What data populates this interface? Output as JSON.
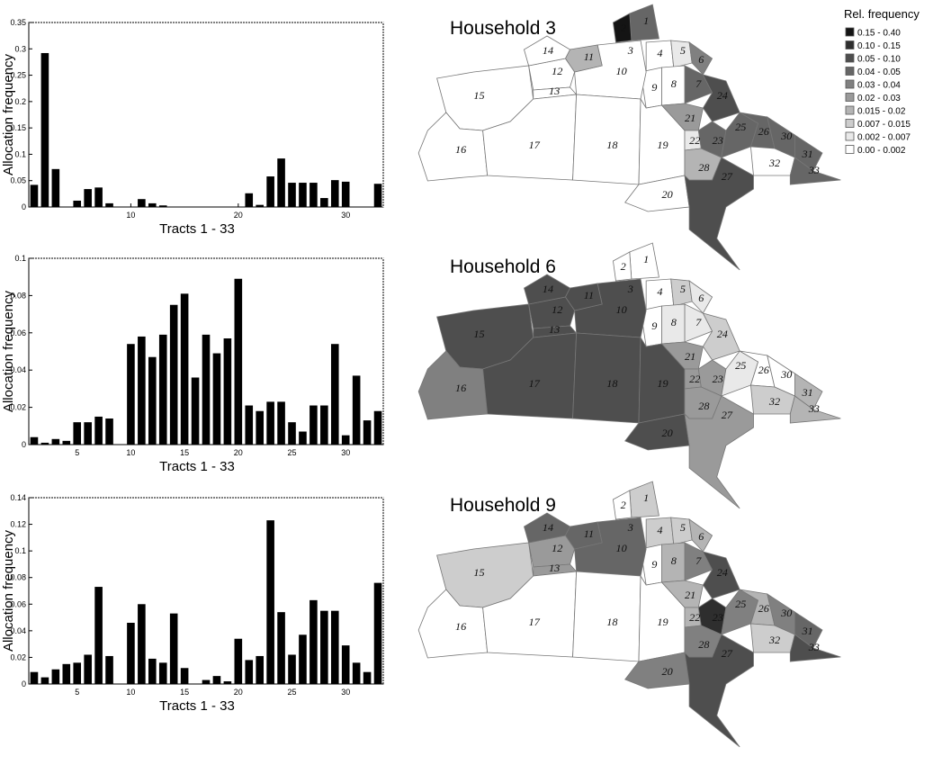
{
  "chart_data": [
    {
      "type": "bar",
      "xlabel": "Tracts 1 - 33",
      "ylabel": "Allocation frequency",
      "ylim": [
        0,
        0.35
      ],
      "yticks": [
        "0",
        "0.05",
        "0.1",
        "0.15",
        "0.2",
        "0.25",
        "0.3",
        "0.35"
      ],
      "xticks": [
        "10",
        "20",
        "30"
      ],
      "x": [
        1,
        2,
        3,
        4,
        5,
        6,
        7,
        8,
        9,
        10,
        11,
        12,
        13,
        14,
        15,
        16,
        17,
        18,
        19,
        20,
        21,
        22,
        23,
        24,
        25,
        26,
        27,
        28,
        29,
        30,
        31,
        32,
        33
      ],
      "values": [
        0.042,
        0.292,
        0.072,
        0.0,
        0.012,
        0.034,
        0.037,
        0.007,
        0.0,
        0.0,
        0.015,
        0.007,
        0.003,
        0.0,
        0.0,
        0.0,
        0.0,
        0.0,
        0.0,
        0.0,
        0.026,
        0.004,
        0.058,
        0.092,
        0.046,
        0.046,
        0.046,
        0.017,
        0.051,
        0.048,
        0.0,
        0.0,
        0.044
      ]
    },
    {
      "type": "bar",
      "xlabel": "Tracts 1 - 33",
      "ylabel": "Allocation frequency",
      "ylim": [
        0,
        0.1
      ],
      "yticks": [
        "0",
        "0.02",
        "0.04",
        "0.06",
        "0.08",
        "0.1"
      ],
      "xticks": [
        "5",
        "10",
        "15",
        "20",
        "25",
        "30"
      ],
      "x": [
        1,
        2,
        3,
        4,
        5,
        6,
        7,
        8,
        9,
        10,
        11,
        12,
        13,
        14,
        15,
        16,
        17,
        18,
        19,
        20,
        21,
        22,
        23,
        24,
        25,
        26,
        27,
        28,
        29,
        30,
        31,
        32,
        33
      ],
      "values": [
        0.004,
        0.001,
        0.003,
        0.002,
        0.012,
        0.012,
        0.015,
        0.014,
        0.0,
        0.054,
        0.058,
        0.047,
        0.059,
        0.075,
        0.081,
        0.036,
        0.059,
        0.049,
        0.057,
        0.089,
        0.021,
        0.018,
        0.023,
        0.023,
        0.012,
        0.007,
        0.021,
        0.021,
        0.054,
        0.005,
        0.037,
        0.013,
        0.018
      ]
    },
    {
      "type": "bar",
      "xlabel": "Tracts 1 - 33",
      "ylabel": "Allocation frequency",
      "ylim": [
        0,
        0.14
      ],
      "yticks": [
        "0",
        "0.02",
        "0.04",
        "0.06",
        "0.08",
        "0.1",
        "0.12",
        "0.14"
      ],
      "xticks": [
        "5",
        "10",
        "15",
        "20",
        "25",
        "30"
      ],
      "x": [
        1,
        2,
        3,
        4,
        5,
        6,
        7,
        8,
        9,
        10,
        11,
        12,
        13,
        14,
        15,
        16,
        17,
        18,
        19,
        20,
        21,
        22,
        23,
        24,
        25,
        26,
        27,
        28,
        29,
        30,
        31,
        32,
        33
      ],
      "values": [
        0.009,
        0.005,
        0.011,
        0.015,
        0.016,
        0.022,
        0.073,
        0.021,
        0.0,
        0.046,
        0.06,
        0.019,
        0.016,
        0.053,
        0.012,
        0.0,
        0.003,
        0.006,
        0.002,
        0.034,
        0.018,
        0.021,
        0.123,
        0.054,
        0.022,
        0.037,
        0.063,
        0.055,
        0.055,
        0.029,
        0.016,
        0.009,
        0.076
      ]
    }
  ],
  "maps": [
    {
      "title": "Household 3"
    },
    {
      "title": "Household 6"
    },
    {
      "title": "Household 9"
    }
  ],
  "legend": {
    "title": "Rel. frequency",
    "items": [
      {
        "label": "0.15 - 0.40",
        "color": "#141414"
      },
      {
        "label": "0.10 - 0.15",
        "color": "#2e2e2e"
      },
      {
        "label": "0.05 - 0.10",
        "color": "#4e4e4e"
      },
      {
        "label": "0.04 - 0.05",
        "color": "#666666"
      },
      {
        "label": "0.03 - 0.04",
        "color": "#808080"
      },
      {
        "label": "0.02 - 0.03",
        "color": "#9a9a9a"
      },
      {
        "label": "0.015 - 0.02",
        "color": "#b4b4b4"
      },
      {
        "label": "0.007 - 0.015",
        "color": "#cdcdcd"
      },
      {
        "label": "0.002 - 0.007",
        "color": "#e9e9e9"
      },
      {
        "label": "0.00 - 0.002",
        "color": "#ffffff"
      }
    ]
  },
  "tract_labels": [
    "1",
    "2",
    "3",
    "4",
    "5",
    "6",
    "7",
    "8",
    "9",
    "10",
    "11",
    "12",
    "13",
    "14",
    "15",
    "16",
    "17",
    "18",
    "19",
    "20",
    "21",
    "22",
    "23",
    "24",
    "25",
    "26",
    "27",
    "28",
    "30",
    "31",
    "32",
    "33"
  ]
}
